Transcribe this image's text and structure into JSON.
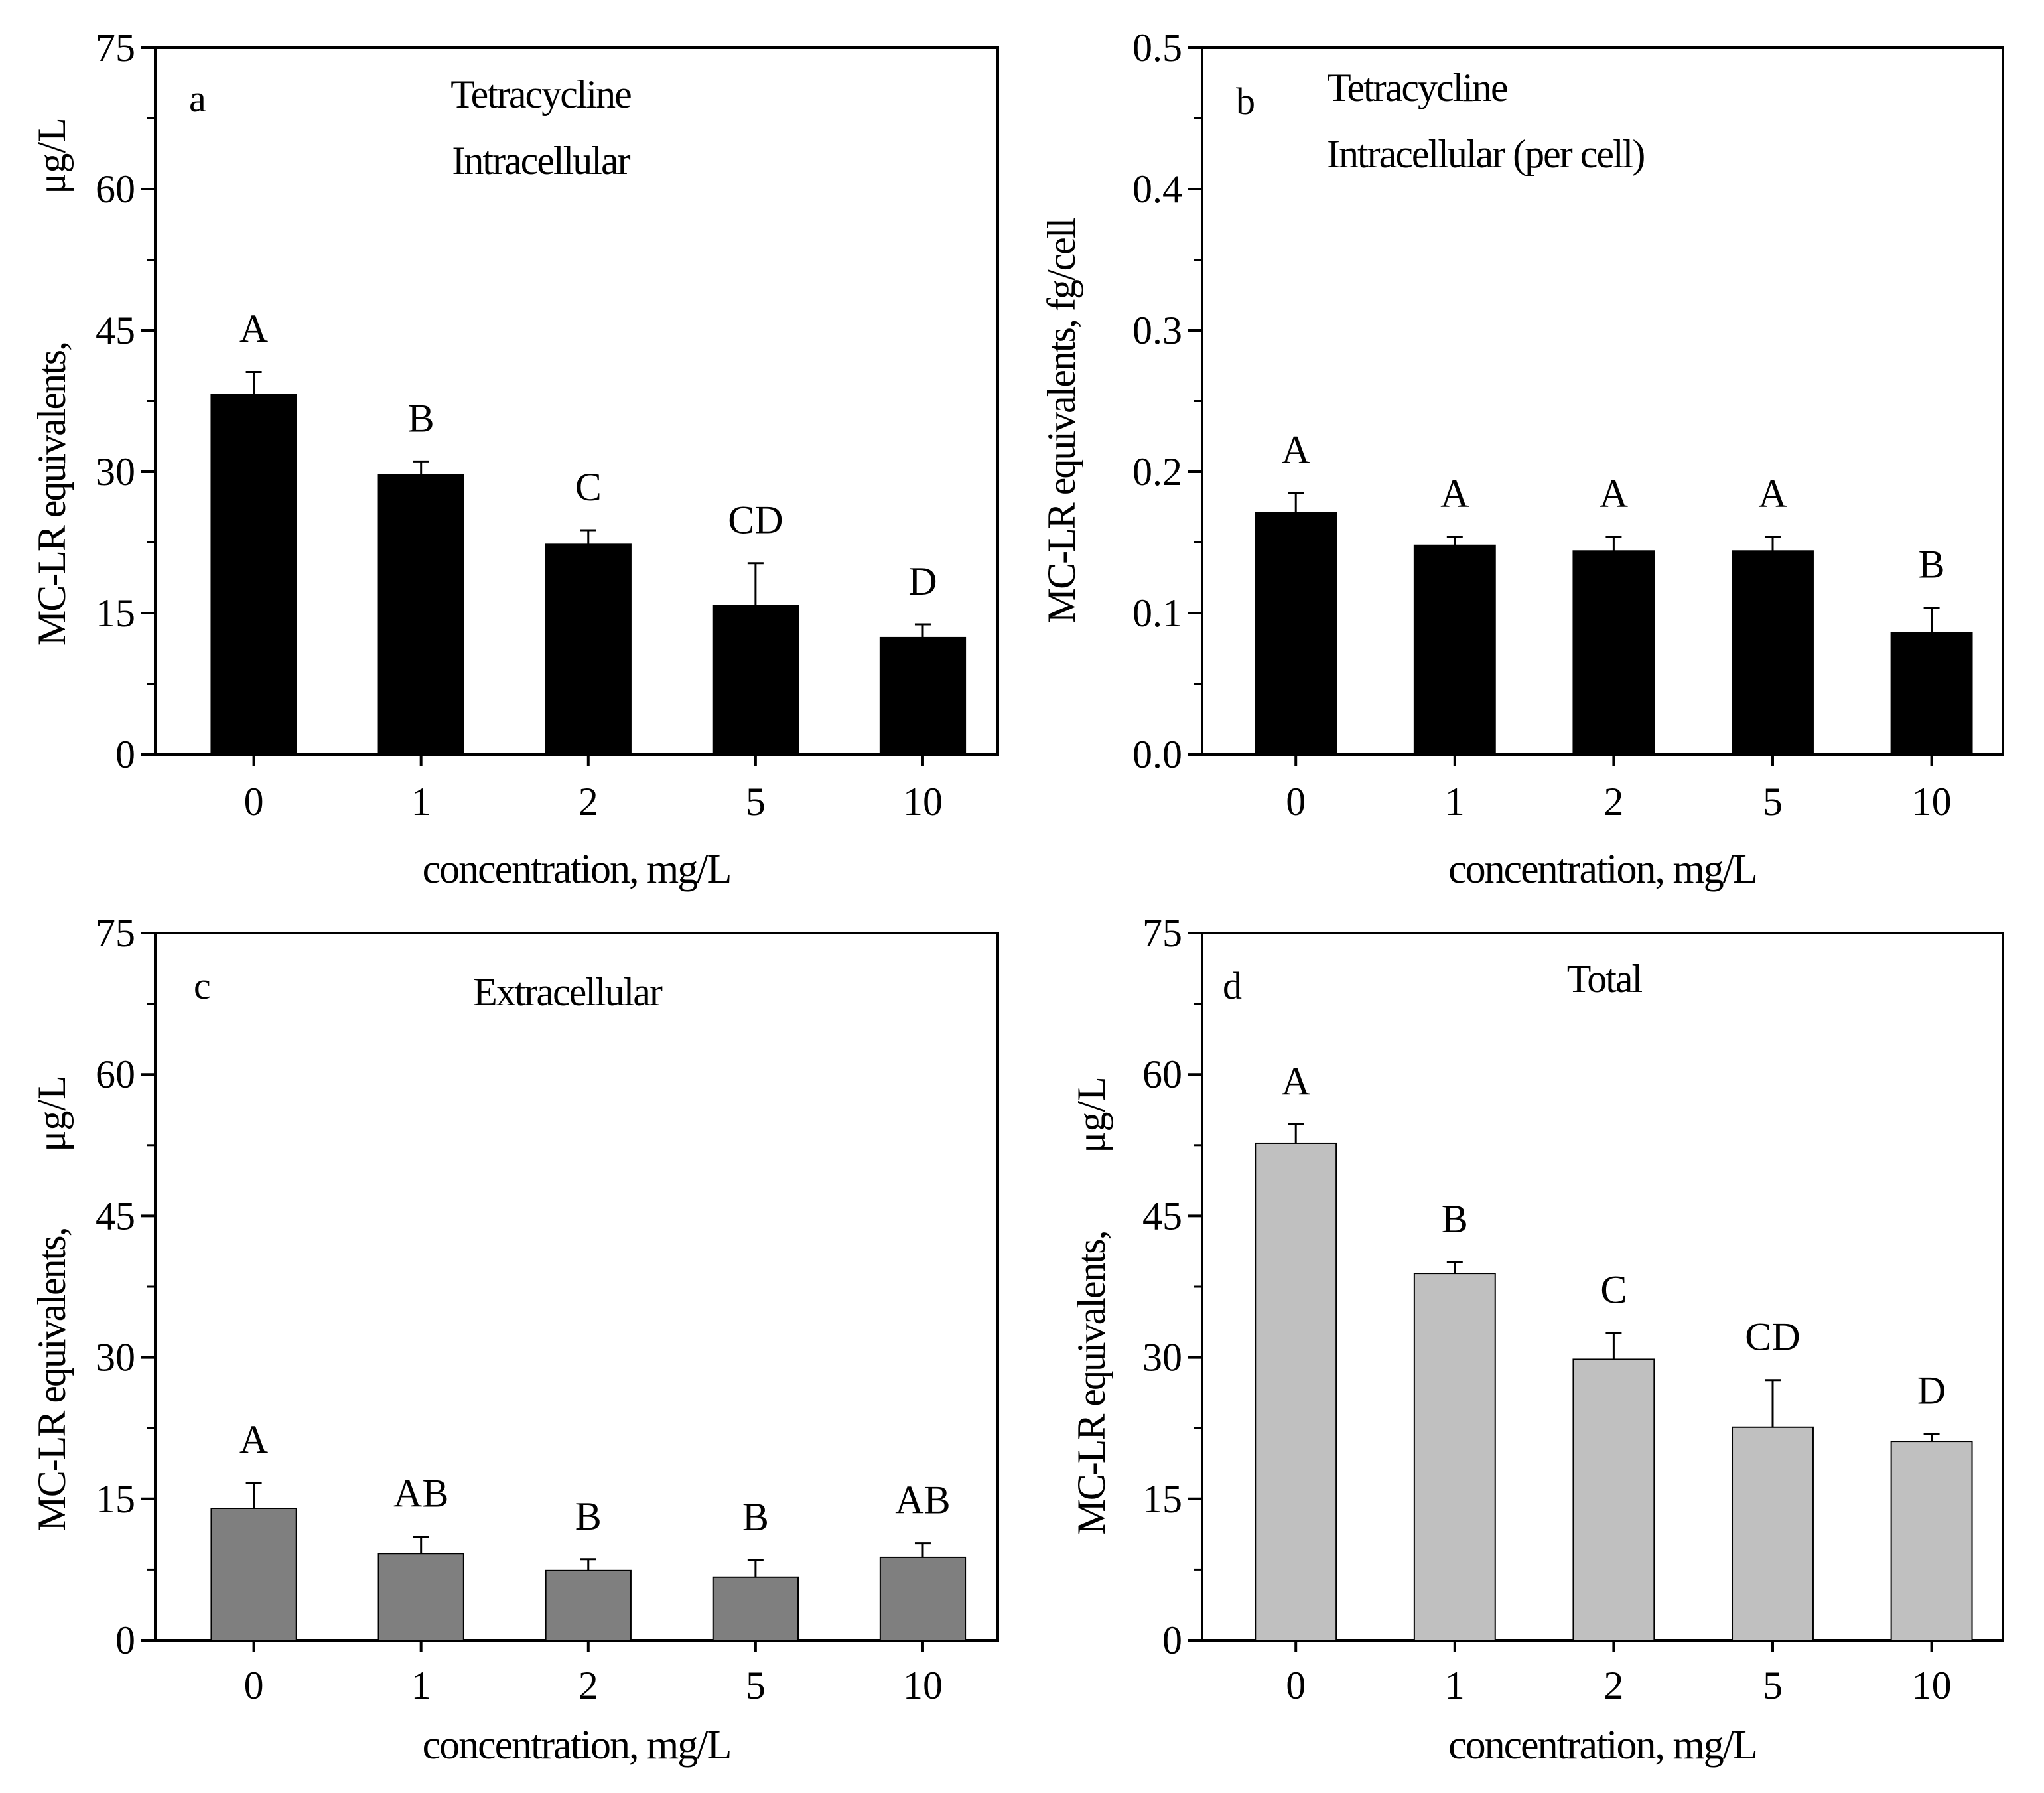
{
  "figure": {
    "description_free": true
  },
  "chart_data": [
    {
      "panel_id": "a",
      "type": "bar",
      "panel_letter": "a",
      "title_lines": [
        "Tetracycline",
        "Intracellular"
      ],
      "categories": [
        "0",
        "1",
        "2",
        "5",
        "10"
      ],
      "values": [
        38.2,
        29.7,
        22.3,
        15.8,
        12.4
      ],
      "errors": [
        2.4,
        1.4,
        1.5,
        4.5,
        1.4
      ],
      "significance": [
        "A",
        "B",
        "C",
        "CD",
        "D"
      ],
      "ylabel_main": "MC-LR equivalents,",
      "ylabel_unit": "μg/L",
      "xlabel": "concentration, mg/L",
      "ylim": [
        0,
        75
      ],
      "yticks": [
        0,
        15,
        30,
        45,
        60,
        75
      ],
      "ytick_labels": [
        "0",
        "15",
        "30",
        "45",
        "60",
        "75"
      ],
      "bar_color": "#000000",
      "grid": false
    },
    {
      "panel_id": "b",
      "type": "bar",
      "panel_letter": "b",
      "title_lines": [
        "Tetracycline",
        "Intracellular (per cell)"
      ],
      "categories": [
        "0",
        "1",
        "2",
        "5",
        "10"
      ],
      "values": [
        0.171,
        0.148,
        0.144,
        0.144,
        0.086
      ],
      "errors": [
        0.014,
        0.006,
        0.01,
        0.01,
        0.018
      ],
      "significance": [
        "A",
        "A",
        "A",
        "A",
        "B"
      ],
      "ylabel_main": "MC-LR equivalents, fg/cell",
      "ylabel_unit": "",
      "xlabel": "concentration, mg/L",
      "ylim": [
        0,
        0.5
      ],
      "yticks": [
        0,
        0.1,
        0.2,
        0.3,
        0.4,
        0.5
      ],
      "ytick_labels": [
        "0.0",
        "0.1",
        "0.2",
        "0.3",
        "0.4",
        "0.5"
      ],
      "bar_color": "#000000",
      "grid": false
    },
    {
      "panel_id": "c",
      "type": "bar",
      "panel_letter": "c",
      "title_lines": [
        "Extracellular"
      ],
      "categories": [
        "0",
        "1",
        "2",
        "5",
        "10"
      ],
      "values": [
        14.0,
        9.2,
        7.4,
        6.7,
        8.8
      ],
      "errors": [
        2.7,
        1.8,
        1.2,
        1.8,
        1.5
      ],
      "significance": [
        "A",
        "AB",
        "B",
        "B",
        "AB"
      ],
      "ylabel_main": "MC-LR equivalents,",
      "ylabel_unit": "μg/L",
      "xlabel": "concentration, mg/L",
      "ylim": [
        0,
        75
      ],
      "yticks": [
        0,
        15,
        30,
        45,
        60,
        75
      ],
      "ytick_labels": [
        "0",
        "15",
        "30",
        "45",
        "60",
        "75"
      ],
      "bar_color": "#7f7f7f",
      "grid": false
    },
    {
      "panel_id": "d",
      "type": "bar",
      "panel_letter": "d",
      "title_lines": [
        "Total"
      ],
      "categories": [
        "0",
        "1",
        "2",
        "5",
        "10"
      ],
      "values": [
        52.7,
        38.9,
        29.8,
        22.6,
        21.1
      ],
      "errors": [
        2.0,
        1.2,
        2.8,
        5.0,
        0.8
      ],
      "significance": [
        "A",
        "B",
        "C",
        "CD",
        "D"
      ],
      "ylabel_main": "MC-LR equivalents,",
      "ylabel_unit": "μg/L",
      "xlabel": "concentration, mg/L",
      "ylim": [
        0,
        75
      ],
      "yticks": [
        0,
        15,
        30,
        45,
        60,
        75
      ],
      "ytick_labels": [
        "0",
        "15",
        "30",
        "45",
        "60",
        "75"
      ],
      "bar_color": "#c0c0c0",
      "grid": false
    }
  ]
}
